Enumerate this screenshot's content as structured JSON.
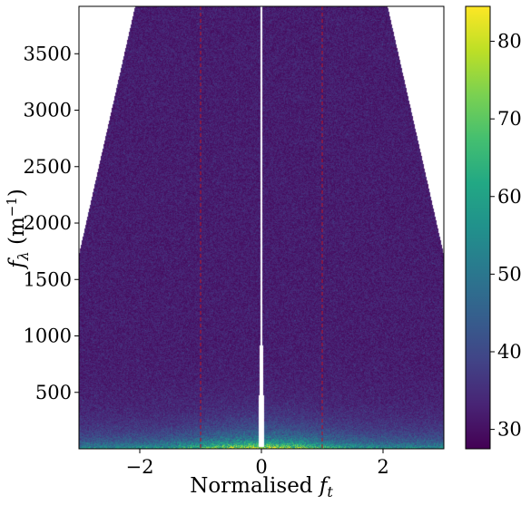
{
  "chart_data": {
    "type": "heatmap",
    "title": "",
    "xlabel": "Normalised f_t",
    "xlabel_main": "Normalised ",
    "xlabel_symbol": "f",
    "xlabel_sub": "t",
    "ylabel": "f_λ (m^-1)",
    "ylabel_symbol": "f",
    "ylabel_sub": "λ",
    "ylabel_unit_open": " (m",
    "ylabel_unit_sup": "−1",
    "ylabel_unit_close": ")",
    "xlim": [
      -3.0,
      3.0
    ],
    "ylim": [
      0,
      3920
    ],
    "x_ticks": [
      {
        "value": -2,
        "label": "−2"
      },
      {
        "value": 0,
        "label": "0"
      },
      {
        "value": 2,
        "label": "2"
      }
    ],
    "y_ticks": [
      {
        "value": 500,
        "label": "500"
      },
      {
        "value": 1000,
        "label": "1000"
      },
      {
        "value": 1500,
        "label": "1500"
      },
      {
        "value": 2000,
        "label": "2000"
      },
      {
        "value": 2500,
        "label": "2500"
      },
      {
        "value": 3000,
        "label": "3000"
      },
      {
        "value": 3500,
        "label": "3500"
      }
    ],
    "reference_lines_x": [
      -1,
      1
    ],
    "reference_line_color": "#b2182b",
    "colormap": "viridis",
    "colorbar": {
      "range": [
        27.5,
        84.5
      ],
      "ticks": [
        {
          "value": 30,
          "label": "30"
        },
        {
          "value": 40,
          "label": "40"
        },
        {
          "value": 50,
          "label": "50"
        },
        {
          "value": 60,
          "label": "60"
        },
        {
          "value": 70,
          "label": "70"
        },
        {
          "value": 80,
          "label": "80"
        }
      ]
    },
    "data_extent": {
      "description": "valid region boundary |x| = 2.6 + 0.4*(y/1720)^2 above y=1720",
      "edge_y_at_plot_border": 1720,
      "center_gap_top_y": 1000
    },
    "grid": false
  }
}
